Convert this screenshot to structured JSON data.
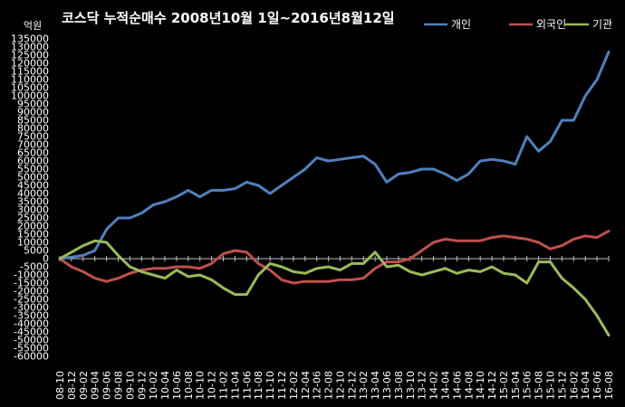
{
  "chart_data": {
    "type": "line",
    "title": "코스닥  누적순매수 2008년10월 1일~2016년8월12일",
    "unit_label": "억원",
    "ylim": [
      -60000,
      135000
    ],
    "y_tick_step": 5000,
    "x_tick_labels": [
      "08-10",
      "08-12",
      "09-02",
      "09-04",
      "09-06",
      "09-08",
      "09-10",
      "09-12",
      "10-02",
      "10-04",
      "10-06",
      "10-08",
      "10-10",
      "10-12",
      "11-02",
      "11-04",
      "11-06",
      "11-08",
      "11-10",
      "11-12",
      "12-02",
      "12-04",
      "12-06",
      "12-08",
      "12-10",
      "12-12",
      "13-02",
      "13-04",
      "13-06",
      "13-08",
      "13-10",
      "13-12",
      "14-02",
      "14-04",
      "14-06",
      "14-08",
      "14-10",
      "14-12",
      "15-02",
      "15-04",
      "15-06",
      "15-08",
      "15-10",
      "15-12",
      "16-02",
      "16-04",
      "16-06",
      "16-08"
    ],
    "legend_position": "top-right",
    "grid": false,
    "series": [
      {
        "name": "개인",
        "color": "#4F81BD",
        "values": [
          0,
          1000,
          2000,
          5000,
          18000,
          25000,
          25000,
          28000,
          33000,
          35000,
          38000,
          42000,
          38000,
          42000,
          42000,
          43000,
          47000,
          45000,
          40000,
          45000,
          50000,
          55000,
          62000,
          60000,
          61000,
          62000,
          63000,
          58000,
          47000,
          52000,
          53000,
          55000,
          55000,
          52000,
          48000,
          52000,
          60000,
          61000,
          60000,
          58000,
          75000,
          66000,
          72000,
          85000,
          85000,
          100000,
          110000,
          127000
        ]
      },
      {
        "name": "외국인",
        "color": "#C0504D",
        "values": [
          0,
          -5000,
          -8000,
          -12000,
          -14000,
          -12000,
          -9000,
          -7000,
          -6000,
          -6000,
          -5000,
          -5000,
          -6000,
          -3000,
          3000,
          5000,
          4000,
          -3000,
          -7000,
          -13000,
          -15000,
          -14000,
          -14000,
          -14000,
          -13000,
          -13000,
          -12000,
          -6000,
          -2000,
          -2000,
          0,
          5000,
          10000,
          12000,
          11000,
          11000,
          11000,
          13000,
          14000,
          13000,
          12000,
          10000,
          6000,
          8000,
          12000,
          14000,
          13000,
          17000
        ]
      },
      {
        "name": "기관",
        "color": "#9BBB59",
        "values": [
          0,
          4000,
          8000,
          11000,
          10000,
          2000,
          -5000,
          -8000,
          -10000,
          -12000,
          -7000,
          -11000,
          -10000,
          -13000,
          -18000,
          -22000,
          -22000,
          -10000,
          -3000,
          -5000,
          -8000,
          -9000,
          -6000,
          -5000,
          -7000,
          -3000,
          -3000,
          4000,
          -5000,
          -4000,
          -8000,
          -10000,
          -8000,
          -6000,
          -9000,
          -7000,
          -8000,
          -5000,
          -9000,
          -10000,
          -15000,
          -2000,
          -2000,
          -12000,
          -18000,
          -25000,
          -35000,
          -47000
        ]
      }
    ]
  }
}
